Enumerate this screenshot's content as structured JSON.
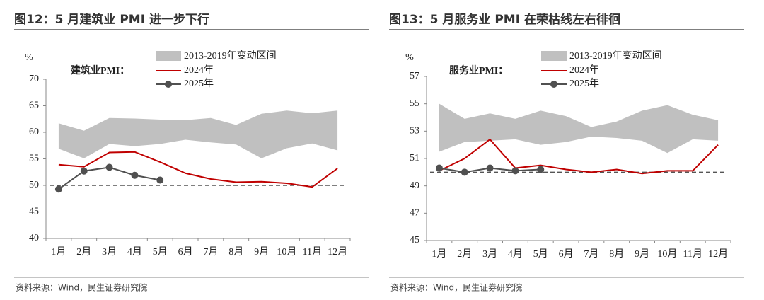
{
  "chart_data": [
    {
      "type": "line",
      "title": "图12：5 月建筑业 PMI 进一步下行",
      "y_unit": "%",
      "annotation": "建筑业PMI：",
      "source": "资料来源：Wind，民生证券研究院",
      "categories": [
        "1月",
        "2月",
        "3月",
        "4月",
        "5月",
        "6月",
        "7月",
        "8月",
        "9月",
        "10月",
        "11月",
        "12月"
      ],
      "band": {
        "name": "2013-2019年变动区间",
        "color": "#c0c0c0",
        "upper": [
          61.7,
          60.3,
          62.7,
          62.6,
          62.4,
          62.3,
          62.7,
          61.4,
          63.5,
          64.1,
          63.6,
          64.1
        ],
        "lower": [
          56.9,
          55.1,
          57.8,
          57.4,
          57.8,
          58.6,
          58.1,
          57.7,
          55.1,
          57.0,
          57.9,
          56.6
        ]
      },
      "series": [
        {
          "name": "2024年",
          "color": "#c00000",
          "marker": false,
          "values": [
            53.9,
            53.5,
            56.2,
            56.3,
            54.4,
            52.3,
            51.2,
            50.6,
            50.7,
            50.4,
            49.7,
            53.2
          ]
        },
        {
          "name": "2025年",
          "color": "#505050",
          "marker": true,
          "values": [
            49.3,
            52.7,
            53.4,
            51.9,
            51.0,
            null,
            null,
            null,
            null,
            null,
            null,
            null
          ]
        }
      ],
      "hline": 50,
      "ylim": [
        40,
        70
      ],
      "yticks": [
        40,
        45,
        50,
        55,
        60,
        65,
        70
      ]
    },
    {
      "type": "line",
      "title": "图13：5 月服务业 PMI 在荣枯线左右徘徊",
      "y_unit": "%",
      "annotation": "服务业PMI：",
      "source": "资料来源：Wind，民生证券研究院",
      "categories": [
        "1月",
        "2月",
        "3月",
        "4月",
        "5月",
        "6月",
        "7月",
        "8月",
        "9月",
        "10月",
        "11月",
        "12月"
      ],
      "band": {
        "name": "2013-2019年变动区间",
        "color": "#c0c0c0",
        "upper": [
          55.0,
          53.9,
          54.3,
          53.9,
          54.5,
          54.1,
          53.3,
          53.7,
          54.5,
          54.9,
          54.2,
          53.8
        ],
        "lower": [
          51.5,
          52.2,
          52.3,
          52.4,
          52.0,
          52.2,
          52.6,
          52.5,
          52.3,
          51.4,
          52.4,
          52.3
        ]
      },
      "series": [
        {
          "name": "2024年",
          "color": "#c00000",
          "marker": false,
          "values": [
            50.1,
            51.0,
            52.4,
            50.3,
            50.5,
            50.2,
            50.0,
            50.2,
            49.9,
            50.1,
            50.1,
            52.0
          ]
        },
        {
          "name": "2025年",
          "color": "#505050",
          "marker": true,
          "values": [
            50.3,
            50.0,
            50.3,
            50.1,
            50.2,
            null,
            null,
            null,
            null,
            null,
            null,
            null
          ]
        }
      ],
      "hline": 50,
      "ylim": [
        45,
        57
      ],
      "yticks": [
        45,
        47,
        49,
        51,
        53,
        55,
        57
      ]
    }
  ]
}
